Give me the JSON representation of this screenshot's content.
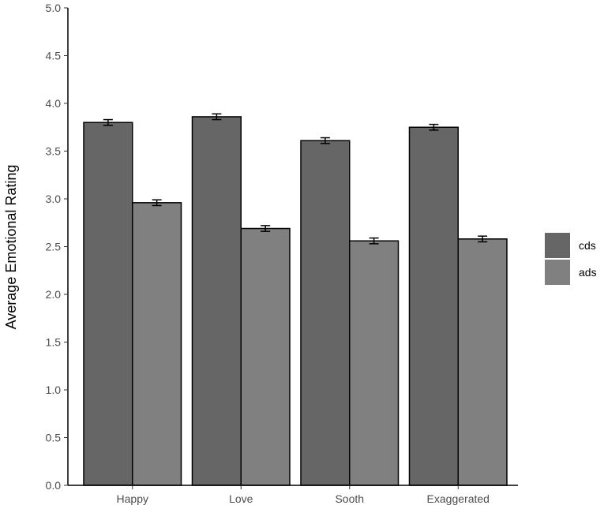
{
  "chart_data": {
    "type": "bar",
    "title": "",
    "xlabel": "",
    "ylabel": "Average Emotional Rating",
    "categories": [
      "Happy",
      "Love",
      "Sooth",
      "Exaggerated"
    ],
    "series": [
      {
        "name": "cds",
        "color": "#666666",
        "values": [
          3.8,
          3.86,
          3.61,
          3.75
        ],
        "error": [
          0.03,
          0.03,
          0.03,
          0.03
        ]
      },
      {
        "name": "ads",
        "color": "#808080",
        "values": [
          2.96,
          2.69,
          2.56,
          2.58
        ],
        "error": [
          0.03,
          0.03,
          0.03,
          0.03
        ]
      }
    ],
    "ylim": [
      0,
      5
    ],
    "yticks": [
      "0.0",
      "0.5",
      "1.0",
      "1.5",
      "2.0",
      "2.5",
      "3.0",
      "3.5",
      "4.0",
      "4.5",
      "5.0"
    ],
    "grid": false,
    "legend_position": "right"
  }
}
